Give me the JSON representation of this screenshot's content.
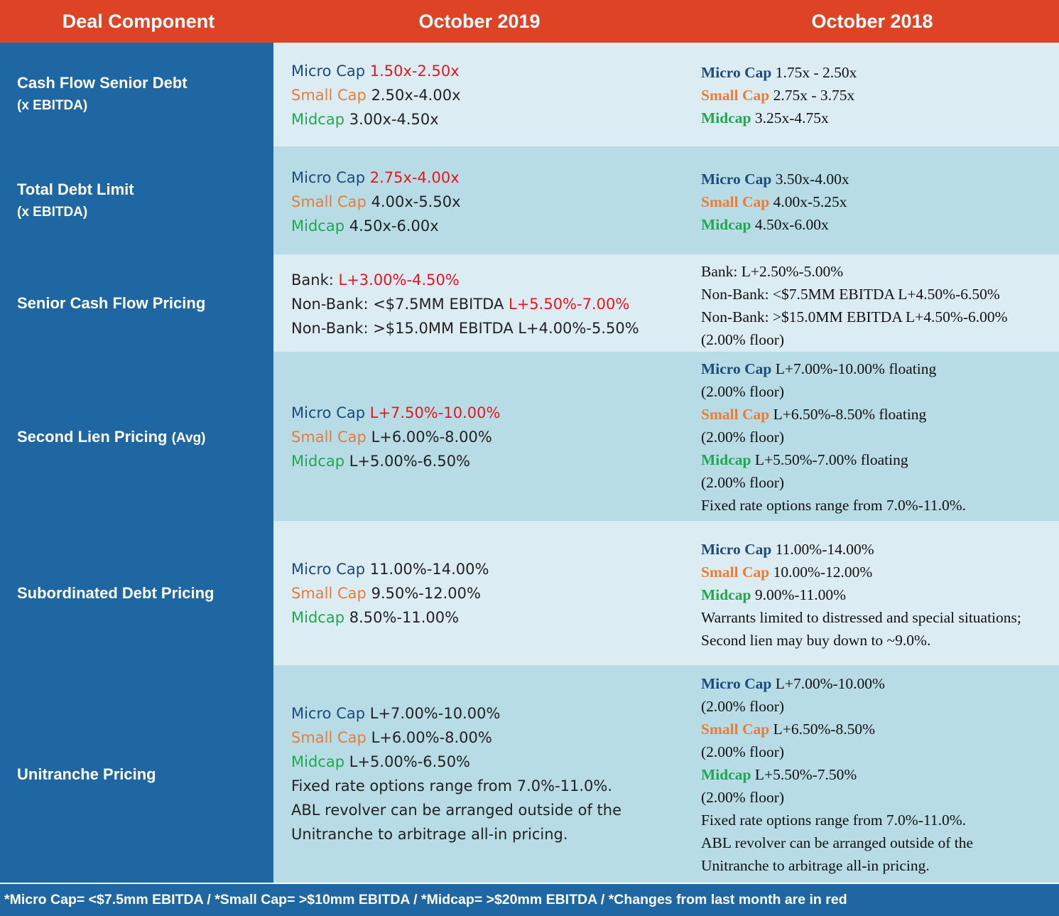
{
  "header": {
    "col1": "Deal Component",
    "col2": "October 2019",
    "col3": "October 2018"
  },
  "rows": [
    {
      "label1": "Cash Flow Senior Debt",
      "label2": "(x EBITDA)",
      "oct2019": [
        {
          "tag": "Micro Cap",
          "value": "1.50x-2.50x",
          "changed": true
        },
        {
          "tag": "Small Cap",
          "value": "2.50x-4.00x"
        },
        {
          "tag": "Midcap",
          "value": "3.00x-4.50x"
        }
      ],
      "oct2018": [
        {
          "tag": "Micro Cap",
          "value": "1.75x - 2.50x"
        },
        {
          "tag": "Small Cap",
          "value": "2.75x - 3.75x"
        },
        {
          "tag": "Midcap",
          "value": "3.25x-4.75x"
        }
      ]
    },
    {
      "label1": "Total Debt Limit",
      "label2": "(x EBITDA)",
      "oct2019": [
        {
          "tag": "Micro Cap",
          "value": "2.75x-4.00x",
          "changed": true
        },
        {
          "tag": "Small Cap",
          "value": "4.00x-5.50x"
        },
        {
          "tag": "Midcap",
          "value": "4.50x-6.00x"
        }
      ],
      "oct2018": [
        {
          "tag": "Micro Cap",
          "value": "3.50x-4.00x"
        },
        {
          "tag": "Small Cap",
          "value": "4.00x-5.25x"
        },
        {
          "tag": "Midcap",
          "value": "4.50x-6.00x"
        }
      ]
    },
    {
      "label1": "Senior Cash Flow Pricing",
      "oct2019": [
        {
          "prefix": "Bank: ",
          "value": "L+3.00%-4.50%",
          "changed": true
        },
        {
          "prefix": "Non-Bank: <$7.5MM EBITDA ",
          "value": "L+5.50%-7.00%",
          "changed": true
        },
        {
          "prefix": "Non-Bank: >$15.0MM EBITDA L+4.00%-5.50%"
        }
      ],
      "oct2018": [
        "Bank: L+2.50%-5.00%",
        "Non-Bank: <$7.5MM EBITDA L+4.50%-6.50%",
        "Non-Bank: >$15.0MM EBITDA L+4.50%-6.00%",
        "(2.00% floor)"
      ]
    },
    {
      "label1": "Second Lien Pricing",
      "label1_suffix": "(Avg)",
      "oct2019": [
        {
          "tag": "Micro Cap",
          "value": "L+7.50%-10.00%",
          "changed": true
        },
        {
          "tag": "Small Cap",
          "value": "L+6.00%-8.00%"
        },
        {
          "tag": "Midcap",
          "value": "L+5.00%-6.50%"
        }
      ],
      "oct2018": [
        {
          "tag": "Micro Cap",
          "value": "L+7.00%-10.00% floating"
        },
        {
          "text": "(2.00% floor)"
        },
        {
          "tag": "Small Cap",
          "value": "L+6.50%-8.50% floating"
        },
        {
          "text": "(2.00% floor)"
        },
        {
          "tag": "Midcap",
          "value": "L+5.50%-7.00% floating"
        },
        {
          "text": "(2.00% floor)"
        },
        {
          "text": "Fixed rate options range from 7.0%-11.0%."
        }
      ]
    },
    {
      "label1": "Subordinated Debt Pricing",
      "oct2019": [
        {
          "tag": "Micro Cap",
          "value": "11.00%-14.00%"
        },
        {
          "tag": "Small Cap",
          "value": "9.50%-12.00%"
        },
        {
          "tag": "Midcap",
          "value": "8.50%-11.00%"
        }
      ],
      "oct2018": [
        {
          "tag": "Micro Cap",
          "value": "11.00%-14.00%"
        },
        {
          "tag": "Small Cap",
          "value": "10.00%-12.00%"
        },
        {
          "tag": "Midcap",
          "value": "9.00%-11.00%"
        },
        {
          "text": "Warrants limited to distressed and special situations;"
        },
        {
          "text": "Second lien may buy down to ~9.0%."
        }
      ]
    },
    {
      "label1": "Unitranche Pricing",
      "oct2019": [
        {
          "tag": "Micro Cap",
          "value": "L+7.00%-10.00%"
        },
        {
          "tag": "Small Cap",
          "value": "L+6.00%-8.00%"
        },
        {
          "tag": "Midcap",
          "value": "L+5.00%-6.50%"
        },
        {
          "text": "Fixed rate options range from 7.0%-11.0%."
        },
        {
          "text": "ABL revolver can be arranged outside of the"
        },
        {
          "text": "Unitranche to arbitrage all-in pricing."
        }
      ],
      "oct2018": [
        {
          "tag": "Micro Cap",
          "value": "L+7.00%-10.00%"
        },
        {
          "text": "(2.00% floor)"
        },
        {
          "tag": "Small Cap",
          "value": "L+6.50%-8.50%"
        },
        {
          "text": "(2.00% floor)"
        },
        {
          "tag": "Midcap",
          "value": "L+5.50%-7.50%"
        },
        {
          "text": "(2.00% floor)"
        },
        {
          "text": "Fixed rate options range from 7.0%-11.0%."
        },
        {
          "text": "ABL revolver can be arranged outside of the"
        },
        {
          "text": "Unitranche to arbitrage all-in pricing."
        }
      ]
    }
  ],
  "footer": "*Micro Cap= <$7.5mm EBITDA / *Small Cap= >$10mm EBITDA / *Midcap= >$20mm EBITDA / *Changes from last month are in red",
  "colors": {
    "header_bg": "#df4326",
    "label_bg": "#1e67a2",
    "row_light": "#dcecf3",
    "row_dark": "#b7dce5",
    "micro_cap": "#1e4a7a",
    "small_cap": "#e97c36",
    "midcap": "#1fa84f",
    "changed": "#e8141c"
  }
}
